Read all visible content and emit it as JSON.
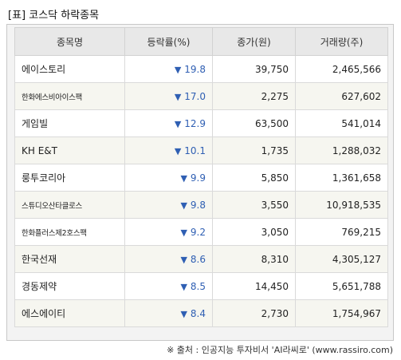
{
  "title": "[표] 코스닥 하락종목",
  "headers": [
    "종목명",
    "등락률(%)",
    "종가(원)",
    "거래량(주)"
  ],
  "down_marker": "▼",
  "rows": [
    {
      "name": "에이스토리",
      "rate": "19.8",
      "price": "39,750",
      "volume": "2,465,566"
    },
    {
      "name": "한화에스비아이스팩",
      "rate": "17.0",
      "price": "2,275",
      "volume": "627,602"
    },
    {
      "name": "게임빌",
      "rate": "12.9",
      "price": "63,500",
      "volume": "541,014"
    },
    {
      "name": "KH E&T",
      "rate": "10.1",
      "price": "1,735",
      "volume": "1,288,032"
    },
    {
      "name": "룽투코리아",
      "rate": "9.9",
      "price": "5,850",
      "volume": "1,361,658"
    },
    {
      "name": "스튜디오산타클로스",
      "rate": "9.8",
      "price": "3,550",
      "volume": "10,918,535"
    },
    {
      "name": "한화플러스제2호스팩",
      "rate": "9.2",
      "price": "3,050",
      "volume": "769,215"
    },
    {
      "name": "한국선재",
      "rate": "8.6",
      "price": "8,310",
      "volume": "4,305,127"
    },
    {
      "name": "경동제약",
      "rate": "8.5",
      "price": "14,450",
      "volume": "5,651,788"
    },
    {
      "name": "에스에이티",
      "rate": "8.4",
      "price": "2,730",
      "volume": "1,754,967"
    }
  ],
  "footer": "※ 출처 : 인공지능 투자비서 'AI라씨로' (www.rassiro.com)"
}
